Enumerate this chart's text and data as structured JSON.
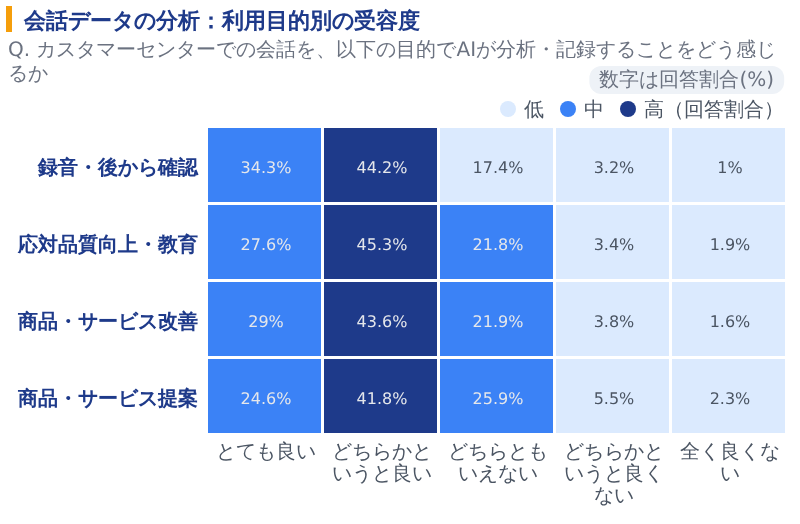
{
  "chart_data": {
    "type": "heatmap",
    "title": "会話データの分析：利用目的別の受容度",
    "subtitle": "Q. カスタマーセンターでの会話を、以下の目的でAIが分析・記録することをどう感じるか",
    "annotations": [
      "数字は回答割合(%)",
      "低",
      "中",
      "高（回答割合）"
    ],
    "categories": [
      "とても良い",
      "どちらかというと良い",
      "どちらともいえない",
      "どちらかというと良くない",
      "全く良くない"
    ],
    "y_categories": [
      "録音・後から確認",
      "応対品質向上・教育",
      "商品・サービス改善",
      "商品・サービス提案"
    ],
    "cells": [
      [
        34.3,
        44.2,
        17.4,
        3.2,
        1
      ],
      [
        27.6,
        45.3,
        21.8,
        3.4,
        1.9
      ],
      [
        29,
        43.6,
        21.9,
        3.8,
        1.6
      ],
      [
        24.6,
        41.8,
        25.9,
        5.5,
        2.3
      ]
    ],
    "cell_labels": [
      [
        "34.3%",
        "44.2%",
        "17.4%",
        "3.2%",
        "1%"
      ],
      [
        "27.6%",
        "45.3%",
        "21.8%",
        "3.4%",
        "1.9%"
      ],
      [
        "29%",
        "43.6%",
        "21.9%",
        "3.8%",
        "1.6%"
      ],
      [
        "24.6%",
        "41.8%",
        "25.9%",
        "5.5%",
        "2.3%"
      ]
    ],
    "colors": [
      "#dbeafe",
      "#3b82f6",
      "#1e3a8a"
    ]
  }
}
